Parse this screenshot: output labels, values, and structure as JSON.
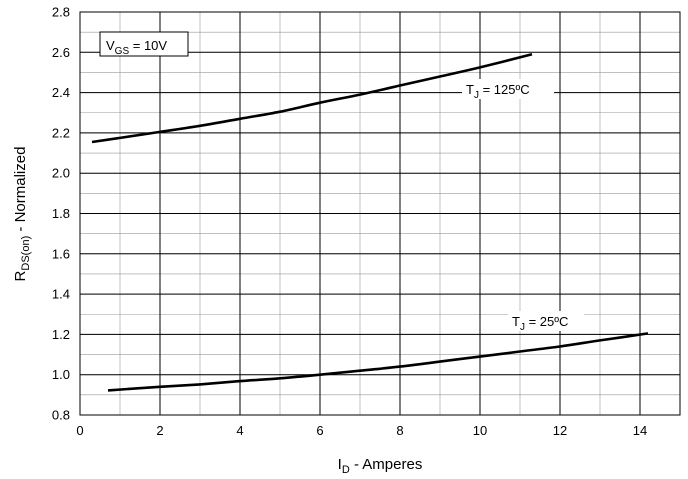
{
  "chart_data": {
    "type": "line",
    "xlabel": {
      "main": "I",
      "sub": "D",
      "rest": " - Amperes"
    },
    "ylabel": {
      "main": "R",
      "sub": "DS(on)",
      "rest": " - Normalized"
    },
    "xlim": [
      0,
      15
    ],
    "ylim": [
      0.8,
      2.8
    ],
    "xticks": [
      0,
      2,
      4,
      6,
      8,
      10,
      12,
      14
    ],
    "yticks": [
      0.8,
      1.0,
      1.2,
      1.4,
      1.6,
      1.8,
      2.0,
      2.2,
      2.4,
      2.6,
      2.8
    ],
    "x_major_grid_step": 2,
    "x_minor_grid_step": 1,
    "y_major_grid_step": 0.2,
    "y_minor_grid_step": 0.1,
    "grid": true,
    "legend_box": {
      "main": "V",
      "sub": "GS",
      "rest": " = 10V"
    },
    "series": [
      {
        "label": {
          "main": "T",
          "sub": "J",
          "rest": " = 125ºC"
        },
        "points": [
          [
            0.3,
            2.155
          ],
          [
            1.0,
            2.175
          ],
          [
            2.0,
            2.205
          ],
          [
            3.0,
            2.235
          ],
          [
            4.0,
            2.27
          ],
          [
            5.0,
            2.305
          ],
          [
            6.0,
            2.35
          ],
          [
            7.0,
            2.39
          ],
          [
            8.0,
            2.435
          ],
          [
            9.0,
            2.48
          ],
          [
            10.0,
            2.525
          ],
          [
            11.3,
            2.59
          ]
        ]
      },
      {
        "label": {
          "main": "T",
          "sub": "J",
          "rest": " = 25ºC"
        },
        "points": [
          [
            0.7,
            0.922
          ],
          [
            2.0,
            0.94
          ],
          [
            3.0,
            0.952
          ],
          [
            4.0,
            0.968
          ],
          [
            5.0,
            0.982
          ],
          [
            6.0,
            1.0
          ],
          [
            7.0,
            1.02
          ],
          [
            8.0,
            1.04
          ],
          [
            9.0,
            1.065
          ],
          [
            10.0,
            1.09
          ],
          [
            11.0,
            1.115
          ],
          [
            12.0,
            1.14
          ],
          [
            13.0,
            1.17
          ],
          [
            14.2,
            1.205
          ]
        ]
      }
    ]
  }
}
